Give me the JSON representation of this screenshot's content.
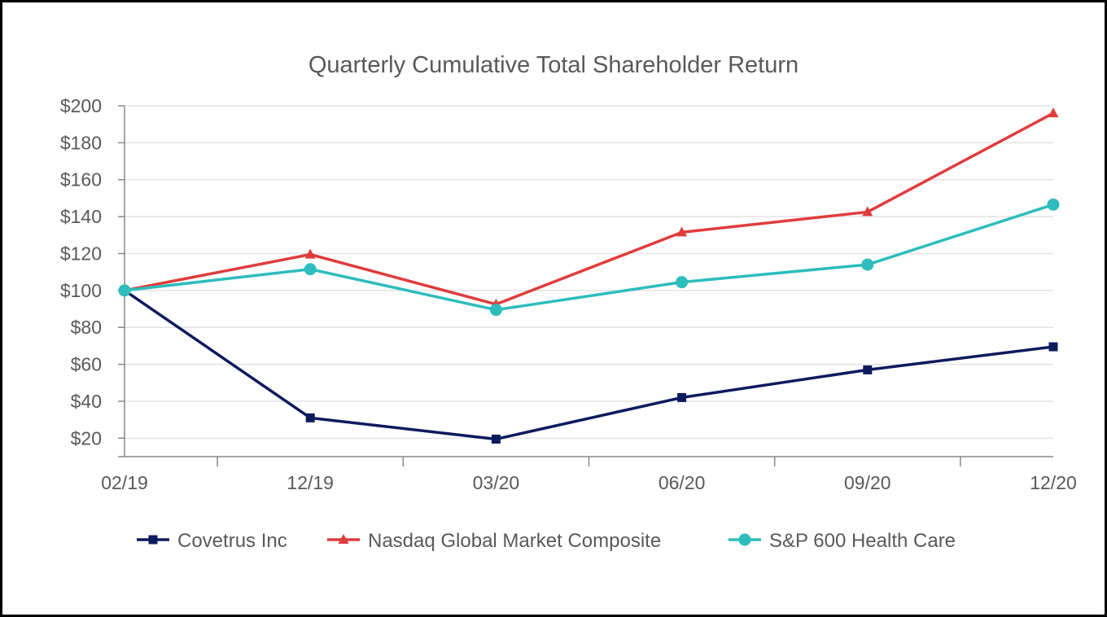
{
  "chart_data": {
    "type": "line",
    "title": "Quarterly Cumulative Total Shareholder Return",
    "categories": [
      "02/19",
      "12/19",
      "03/20",
      "06/20",
      "09/20",
      "12/20"
    ],
    "yticks": [
      "$20",
      "$40",
      "$60",
      "$80",
      "$100",
      "$120",
      "$140",
      "$160",
      "$180",
      "$200"
    ],
    "ytick_values": [
      20,
      40,
      60,
      80,
      100,
      120,
      140,
      160,
      180,
      200
    ],
    "ylim": [
      10,
      200
    ],
    "grid": true,
    "legend_position": "bottom",
    "series": [
      {
        "name": "Covetrus Inc",
        "values": [
          100,
          31,
          19.5,
          42,
          57,
          69.5
        ],
        "color": "#0d1b5e",
        "marker": "square"
      },
      {
        "name": "Nasdaq Global Market Composite",
        "values": [
          100,
          119.5,
          92.5,
          131.5,
          142.5,
          196
        ],
        "color": "#e03c3c",
        "marker": "triangle"
      },
      {
        "name": "S&P 600 Health Care",
        "values": [
          100,
          111.5,
          89.5,
          104.5,
          114,
          146.5
        ],
        "color": "#2ebcbc",
        "marker": "circle"
      }
    ]
  }
}
